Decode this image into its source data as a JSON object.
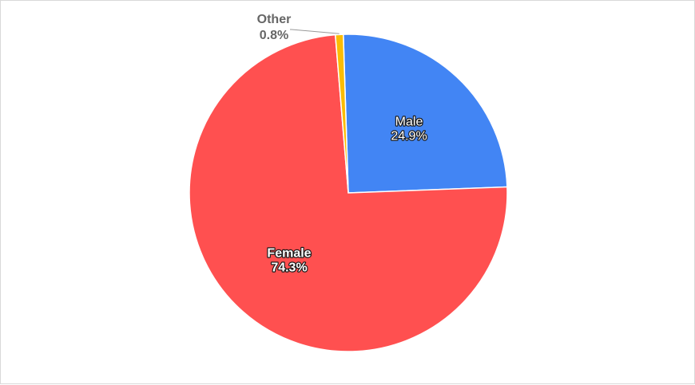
{
  "chart_data": {
    "type": "pie",
    "title": "",
    "start_angle_deg": -1.8,
    "direction": "clockwise",
    "slices": [
      {
        "label": "Male",
        "value": 24.9,
        "display": "24.9%",
        "color": "#4285f4",
        "label_style": "inside",
        "bold": false
      },
      {
        "label": "Female",
        "value": 74.3,
        "display": "74.3%",
        "color": "#ff5050",
        "label_style": "inside",
        "bold": true
      },
      {
        "label": "Other",
        "value": 0.8,
        "display": "0.8%",
        "color": "#fbbc04",
        "label_style": "outside",
        "bold": true
      }
    ],
    "legend": "none"
  }
}
